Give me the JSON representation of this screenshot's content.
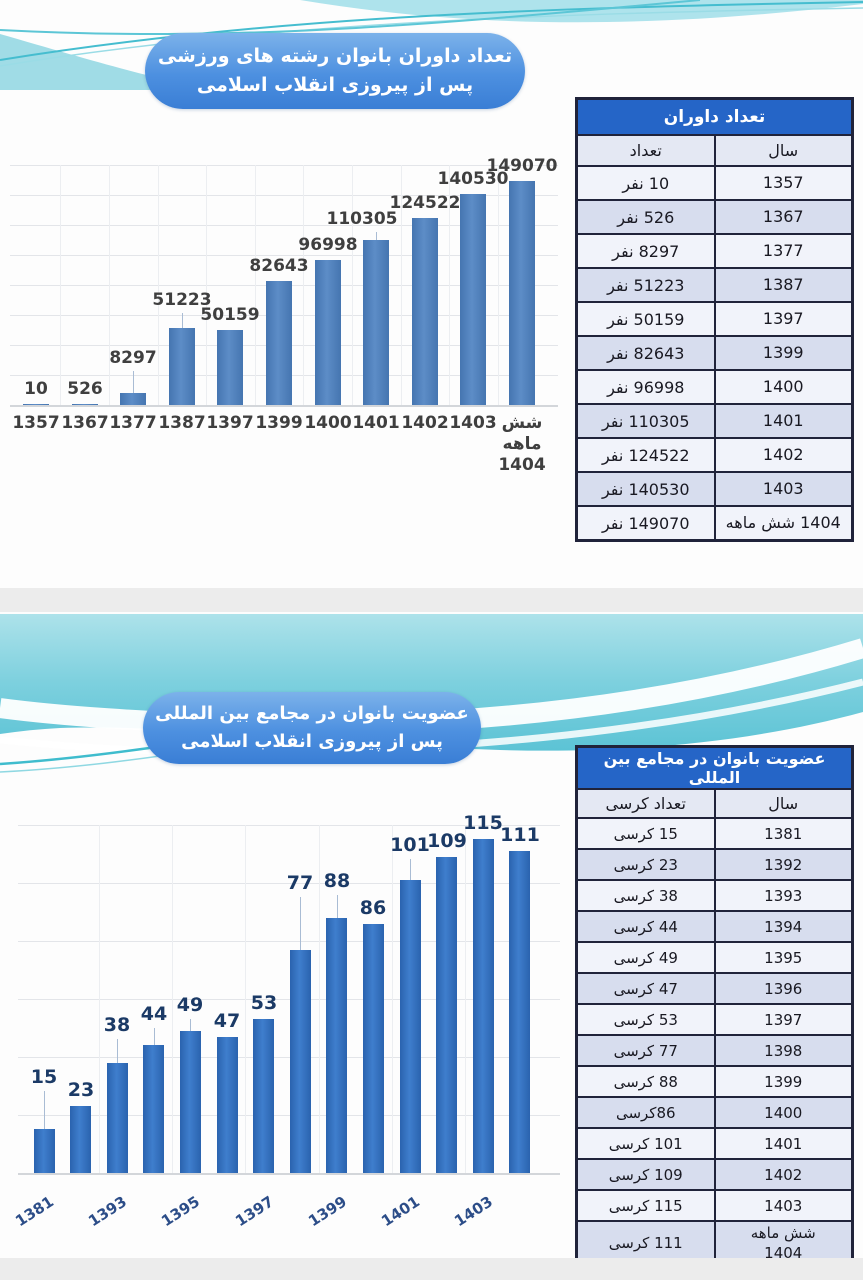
{
  "colors": {
    "bar_chart1": "#4e81bd",
    "bar_chart2": "#2f6fc1",
    "data_label_chart1": "#3f3f3f",
    "data_label_chart2": "#1b3a66",
    "axis_tick_chart2": "#2c4d88",
    "table_header_bg": "#2565c7",
    "table_row_light": "#f1f3fa",
    "table_row_alt": "#d7ddee",
    "table_colhead_bg": "#e4e8f3",
    "title_pill_bg": "#4d90e0",
    "wave_teal": "#62c6d7",
    "separator_gray": "#ececec"
  },
  "slide1": {
    "title": "تعداد داوران بانوان رشته های ورزشی\nپس از پیروزی انقلاب اسلامی",
    "table": {
      "title": "تعداد داوران",
      "col_count": "تعداد",
      "col_year": "سال",
      "rows": [
        {
          "count": "10 نفر",
          "year": "1357"
        },
        {
          "count": "526 نفر",
          "year": "1367"
        },
        {
          "count": "8297 نفر",
          "year": "1377"
        },
        {
          "count": "51223 نفر",
          "year": "1387"
        },
        {
          "count": "50159 نفر",
          "year": "1397"
        },
        {
          "count": "82643 نفر",
          "year": "1399"
        },
        {
          "count": "96998 نفر",
          "year": "1400"
        },
        {
          "count": "110305 نفر",
          "year": "1401"
        },
        {
          "count": "124522 نفر",
          "year": "1402"
        },
        {
          "count": "140530 نفر",
          "year": "1403"
        },
        {
          "count": "149070 نفر",
          "year": "1404 شش ماهه"
        }
      ]
    }
  },
  "slide2": {
    "title": "عضویت بانوان در مجامع بین المللی\nپس از پیروزی انقلاب اسلامی",
    "table": {
      "title": "عضویت بانوان در مجامع بین المللی",
      "col_count": "تعداد کرسی",
      "col_year": "سال",
      "rows": [
        {
          "count": "15 کرسی",
          "year": "1381"
        },
        {
          "count": "23 کرسی",
          "year": "1392"
        },
        {
          "count": "38 کرسی",
          "year": "1393"
        },
        {
          "count": "44 کرسی",
          "year": "1394"
        },
        {
          "count": "49 کرسی",
          "year": "1395"
        },
        {
          "count": "47 کرسی",
          "year": "1396"
        },
        {
          "count": "53 کرسی",
          "year": "1397"
        },
        {
          "count": "77 کرسی",
          "year": "1398"
        },
        {
          "count": "88 کرسی",
          "year": "1399"
        },
        {
          "count": "86کرسی",
          "year": "1400"
        },
        {
          "count": "101 کرسی",
          "year": "1401"
        },
        {
          "count": "109 کرسی",
          "year": "1402"
        },
        {
          "count": "115 کرسی",
          "year": "1403"
        },
        {
          "count": "111 کرسی",
          "year": "شش ماهه\n1404"
        }
      ]
    }
  },
  "chart_data": [
    {
      "type": "bar",
      "title": "تعداد داوران بانوان رشته های ورزشی پس از پیروزی انقلاب اسلامی",
      "categories": [
        "1357",
        "1367",
        "1377",
        "1387",
        "1397",
        "1399",
        "1400",
        "1401",
        "1402",
        "1403",
        "شش ماهه 1404"
      ],
      "values": [
        10,
        526,
        8297,
        51223,
        50159,
        82643,
        96998,
        110305,
        124522,
        140530,
        149070
      ],
      "xlabel": "",
      "ylabel": "",
      "ylim": [
        0,
        160000
      ],
      "gridline_step": 20000,
      "grid": true,
      "legend": "none",
      "bar_color": "#4e81bd",
      "label_color": "#3f3f3f",
      "leader_indices": [
        2,
        3,
        7
      ],
      "label_offsets": {
        "2": [
          0,
          -20
        ],
        "3": [
          0,
          -13
        ],
        "7": [
          -14,
          -6
        ]
      }
    },
    {
      "type": "bar",
      "title": "عضویت بانوان در مجامع بین المللی پس از پیروزی انقلاب اسلامی",
      "categories": [
        "1381",
        "1392",
        "1393",
        "1394",
        "1395",
        "1396",
        "1397",
        "1398",
        "1399",
        "1400",
        "1401",
        "1402",
        "1403",
        "شش ماهه 1404"
      ],
      "values": [
        15,
        23,
        38,
        44,
        49,
        47,
        53,
        77,
        88,
        86,
        101,
        109,
        115,
        111
      ],
      "x_ticks_shown": [
        "1381",
        "1393",
        "1395",
        "1397",
        "1399",
        "1401",
        "1403"
      ],
      "xlabel": "",
      "ylabel": "",
      "ylim": [
        0,
        125
      ],
      "gridline_step": 20,
      "grid": true,
      "legend": "none",
      "bar_color": "#2f6fc1",
      "label_color": "#1b3a66",
      "leader_indices": [
        0,
        2,
        3,
        4,
        7,
        8,
        10
      ],
      "label_offsets": {
        "0": [
          0,
          -36
        ],
        "2": [
          0,
          -22
        ],
        "3": [
          0,
          -15
        ],
        "4": [
          0,
          -10
        ],
        "7": [
          0,
          -51
        ],
        "8": [
          0,
          -21
        ],
        "10": [
          0,
          -19
        ]
      }
    }
  ]
}
